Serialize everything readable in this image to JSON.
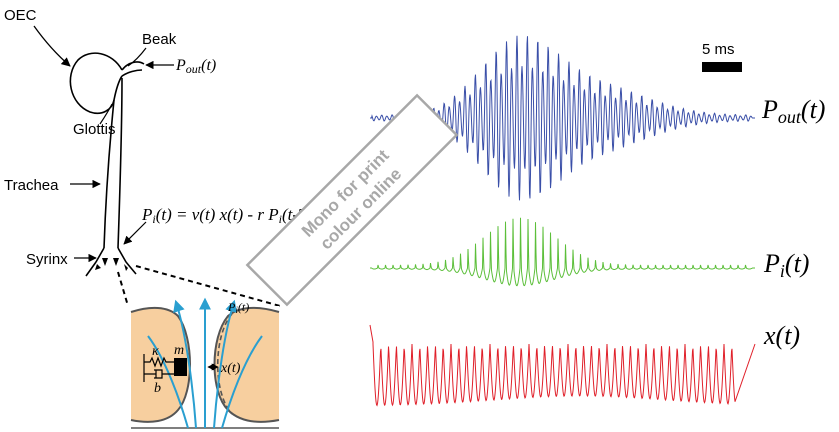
{
  "labels": {
    "oec": "OEC",
    "beak": "Beak",
    "pout_arrow": "Pout(t)",
    "glottis": "Glottis",
    "trachea": "Trachea",
    "syrinx": "Syrinx",
    "equation": "Pi(t) = ν(t) x(t) - r Pi(t-T)",
    "kappa": "κ",
    "mass": "m",
    "damping": "b",
    "x_inset": "x(t)",
    "pi_inset": "Pi(t)",
    "scale_bar": "5 ms",
    "pout_trace": "Pout(t)",
    "pi_trace": "Pi(t)",
    "x_trace": "x(t)",
    "stamp_line1": "Mono for print",
    "stamp_line2": "colour online"
  },
  "colors": {
    "pout": "#3a4fa8",
    "pi": "#5cbf3a",
    "x": "#e0202a",
    "tissue": "#f7cf9f",
    "flow": "#2a9fd0",
    "stamp": "#a8a8a8"
  }
}
